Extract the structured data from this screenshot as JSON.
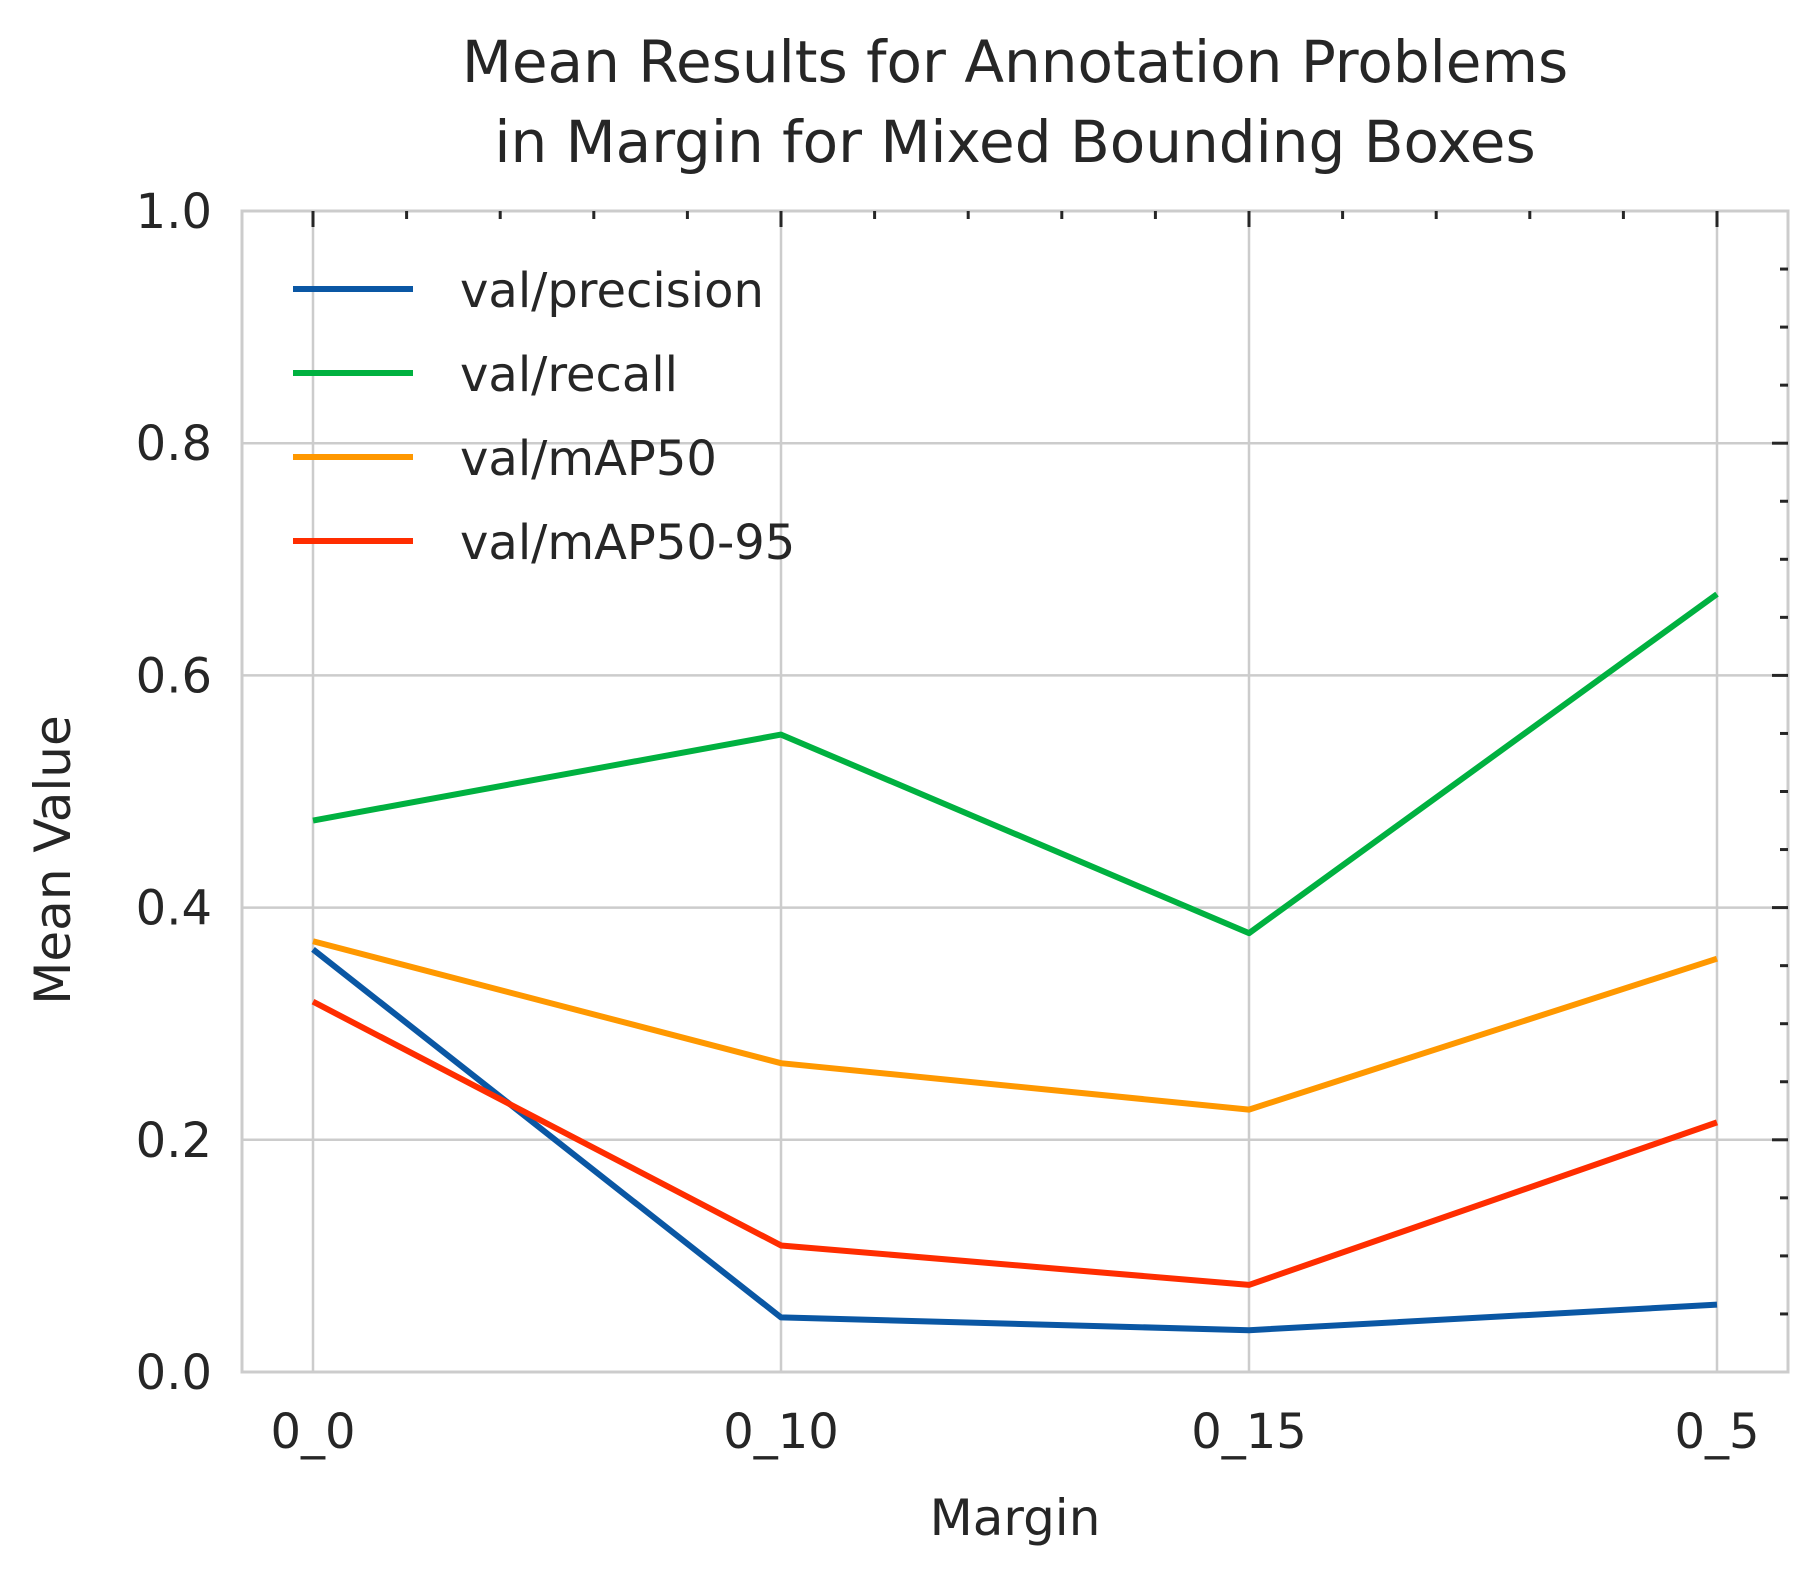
{
  "chart_data": {
    "type": "line",
    "title": [
      "Mean Results for Annotation Problems",
      "in Margin for Mixed Bounding Boxes"
    ],
    "xlabel": "Margin",
    "ylabel": "Mean Value",
    "categories": [
      "0_0",
      "0_10",
      "0_15",
      "0_5"
    ],
    "ylim": [
      0,
      1
    ],
    "yticks": [
      "0.0",
      "0.2",
      "0.4",
      "0.6",
      "0.8",
      "1.0"
    ],
    "grid": true,
    "legend_position": "upper-left",
    "series": [
      {
        "name": "val/precision",
        "color": "#0a57a4",
        "values": [
          0.364,
          0.047,
          0.036,
          0.058
        ]
      },
      {
        "name": "val/recall",
        "color": "#00b140",
        "values": [
          0.475,
          0.549,
          0.378,
          0.67
        ]
      },
      {
        "name": "val/mAP50",
        "color": "#ff9800",
        "values": [
          0.371,
          0.266,
          0.226,
          0.356
        ]
      },
      {
        "name": "val/mAP50-95",
        "color": "#ff2d00",
        "values": [
          0.319,
          0.109,
          0.075,
          0.215
        ]
      }
    ]
  }
}
